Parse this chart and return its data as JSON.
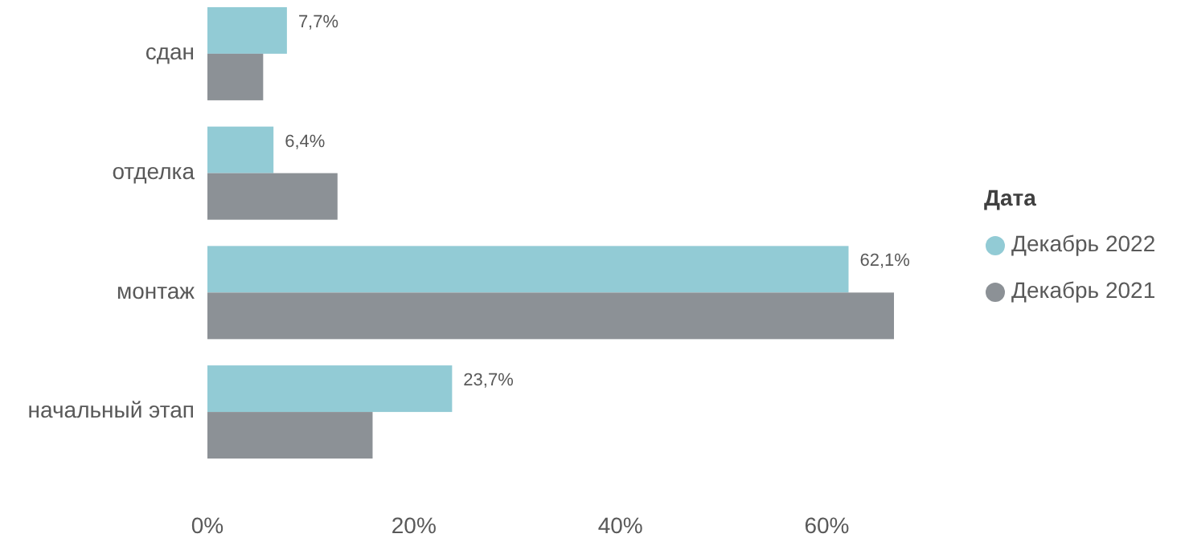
{
  "chart_data": {
    "type": "bar",
    "orientation": "horizontal",
    "categories": [
      "сдан",
      "отделка",
      "монтаж",
      "начальный этап"
    ],
    "series": [
      {
        "name": "Декабрь 2022",
        "color": "#92cbd5",
        "values": [
          7.7,
          6.4,
          62.1,
          23.7
        ],
        "value_labels": [
          "7,7%",
          "6,4%",
          "62,1%",
          "23,7%"
        ]
      },
      {
        "name": "Декабрь 2021",
        "color": "#8c9196",
        "values": [
          5.4,
          12.6,
          66.5,
          16.0
        ]
      }
    ],
    "xlim": [
      0,
      66.5
    ],
    "xticks": [
      {
        "value": 0,
        "label": "0%"
      },
      {
        "value": 20,
        "label": "20%"
      },
      {
        "value": 40,
        "label": "40%"
      },
      {
        "value": 60,
        "label": "60%"
      }
    ],
    "legend_title": "Дата",
    "legend": "right",
    "grid": false
  }
}
